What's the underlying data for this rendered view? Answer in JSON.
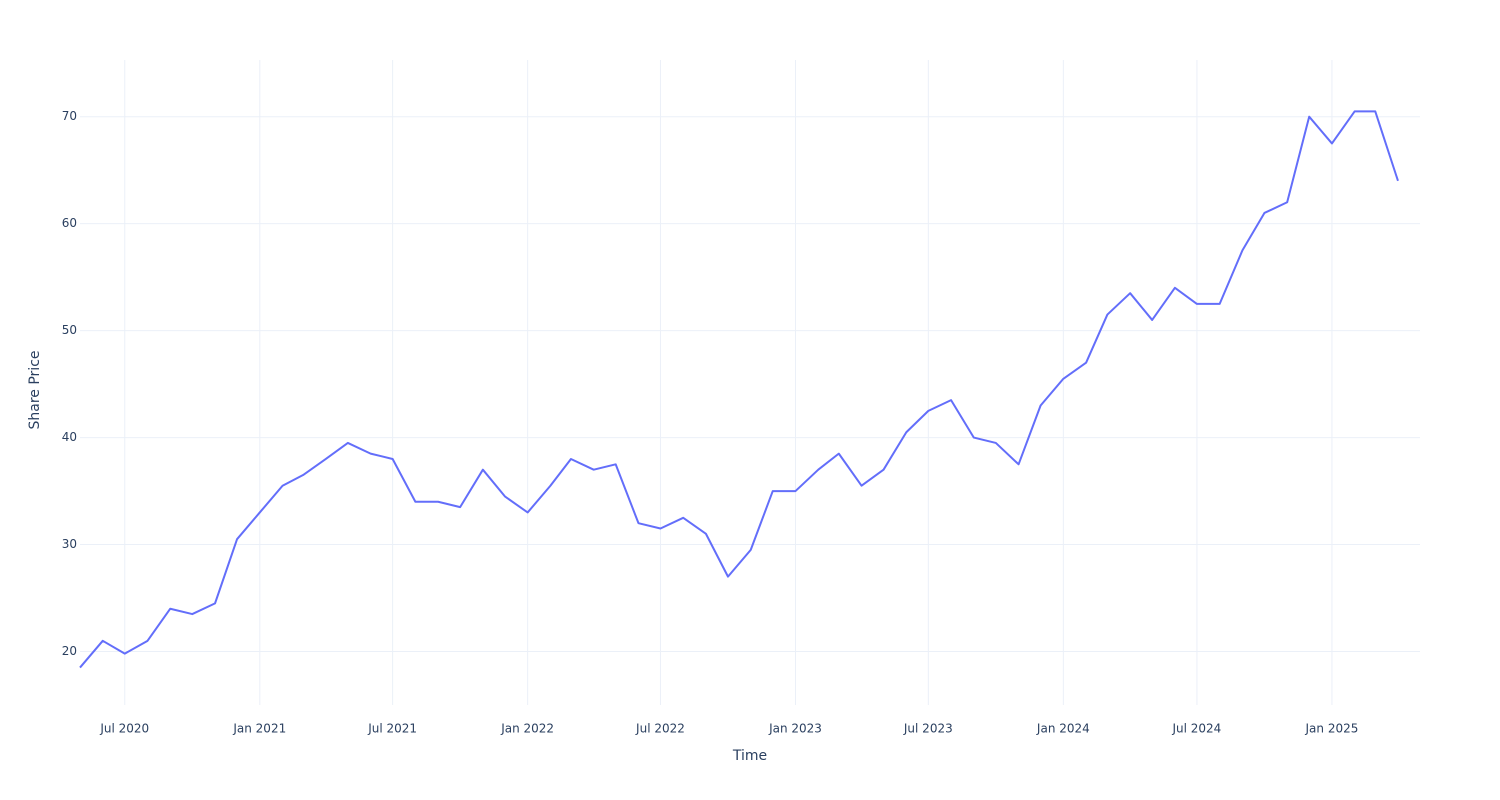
{
  "chart_data": {
    "type": "line",
    "x_label": "Time",
    "y_label": "Share Price",
    "x": [
      "2020-05",
      "2020-06",
      "2020-07",
      "2020-08",
      "2020-09",
      "2020-10",
      "2020-11",
      "2020-12",
      "2021-01",
      "2021-02",
      "2021-03",
      "2021-04",
      "2021-05",
      "2021-06",
      "2021-07",
      "2021-08",
      "2021-09",
      "2021-10",
      "2021-11",
      "2021-12",
      "2022-01",
      "2022-02",
      "2022-03",
      "2022-04",
      "2022-05",
      "2022-06",
      "2022-07",
      "2022-08",
      "2022-09",
      "2022-10",
      "2022-11",
      "2022-12",
      "2023-01",
      "2023-02",
      "2023-03",
      "2023-04",
      "2023-05",
      "2023-06",
      "2023-07",
      "2023-08",
      "2023-09",
      "2023-10",
      "2023-11",
      "2023-12",
      "2024-01",
      "2024-02",
      "2024-03",
      "2024-04",
      "2024-05",
      "2024-06",
      "2024-07",
      "2024-08",
      "2024-09",
      "2024-10",
      "2024-11",
      "2024-12",
      "2025-01",
      "2025-02",
      "2025-03",
      "2025-04"
    ],
    "series": [
      {
        "color": "#636efa",
        "values": [
          18.5,
          21,
          19.8,
          21,
          24,
          23.5,
          24.5,
          30.5,
          33,
          35.5,
          36.5,
          38,
          39.5,
          38.5,
          38,
          34,
          34,
          33.5,
          37,
          34.5,
          33,
          35.5,
          38,
          37,
          37.5,
          32,
          31.5,
          32.5,
          31,
          27,
          29.5,
          35,
          35,
          37,
          38.5,
          35.5,
          37,
          40.5,
          42.5,
          43.5,
          40,
          39.5,
          37.5,
          43,
          45.5,
          47,
          51.5,
          53.5,
          51,
          54,
          52.5,
          52.5,
          57.5,
          61,
          62,
          70,
          67.5,
          70.5,
          70.5,
          64
        ]
      }
    ],
    "xlim": [
      "2020-05",
      "2025-05"
    ],
    "xticks": [
      {
        "value": "2020-07",
        "label": "Jul 2020"
      },
      {
        "value": "2021-01",
        "label": "Jan 2021"
      },
      {
        "value": "2021-07",
        "label": "Jul 2021"
      },
      {
        "value": "2022-01",
        "label": "Jan 2022"
      },
      {
        "value": "2022-07",
        "label": "Jul 2022"
      },
      {
        "value": "2023-01",
        "label": "Jan 2023"
      },
      {
        "value": "2023-07",
        "label": "Jul 2023"
      },
      {
        "value": "2024-01",
        "label": "Jan 2024"
      },
      {
        "value": "2024-07",
        "label": "Jul 2024"
      },
      {
        "value": "2025-01",
        "label": "Jan 2025"
      }
    ],
    "ylim": [
      15,
      75.3
    ],
    "yticks": [
      20,
      30,
      40,
      50,
      60,
      70
    ],
    "grid": true
  }
}
